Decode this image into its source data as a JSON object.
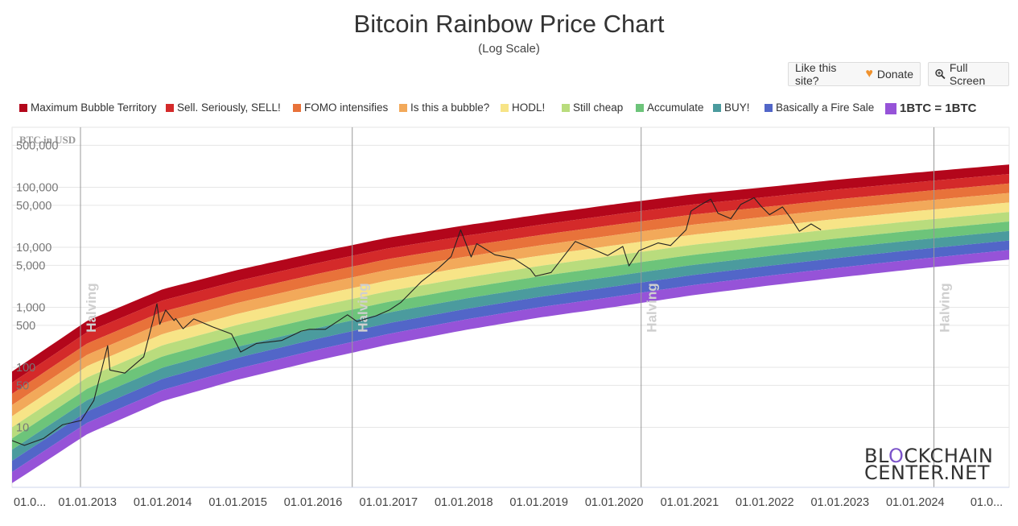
{
  "header": {
    "title": "Bitcoin Rainbow Price Chart",
    "subtitle": "(Log Scale)"
  },
  "toolbar": {
    "donate_label": "Like this site?",
    "donate_link": "Donate",
    "fullscreen_label": "Full Screen"
  },
  "legend": [
    {
      "label": "Maximum Bubble Territory",
      "color": "#b3061b"
    },
    {
      "label": "Sell. Seriously, SELL!",
      "color": "#d42a2a"
    },
    {
      "label": "FOMO intensifies",
      "color": "#e8723a"
    },
    {
      "label": "Is this a bubble?",
      "color": "#f2a95a"
    },
    {
      "label": "HODL!",
      "color": "#f7e487"
    },
    {
      "label": "Still cheap",
      "color": "#b9dc7d"
    },
    {
      "label": "Accumulate",
      "color": "#6dc47a"
    },
    {
      "label": "BUY!",
      "color": "#4b9b9e"
    },
    {
      "label": "Basically a Fire Sale",
      "color": "#5266c8"
    },
    {
      "label": "1BTC = 1BTC",
      "color": "#9653d8"
    }
  ],
  "logo": {
    "part1": "BL",
    "o": "O",
    "part2": "CKCHAIN",
    "line2": "CENTER.NET"
  },
  "chart_data": {
    "type": "area",
    "title": "Bitcoin Rainbow Price Chart",
    "subtitle": "(Log Scale)",
    "ylabel": "BTC in USD",
    "yscale": "log",
    "ylim": [
      1,
      1000000
    ],
    "y_ticks": [
      10,
      50,
      100,
      500,
      1000,
      5000,
      10000,
      50000,
      100000,
      500000
    ],
    "y_tick_labels": [
      "10",
      "50",
      "100",
      "500",
      "1,000",
      "5,000",
      "10,000",
      "50,000",
      "100,000",
      "500,000"
    ],
    "xlim": [
      "2012-01-01",
      "2025-04-01"
    ],
    "x_ticks": [
      "2012-01-01",
      "2013-01-01",
      "2014-01-01",
      "2015-01-01",
      "2016-01-01",
      "2017-01-01",
      "2018-01-01",
      "2019-01-01",
      "2020-01-01",
      "2021-01-01",
      "2022-01-01",
      "2023-01-01",
      "2024-01-01",
      "2025-01-01"
    ],
    "x_tick_labels": [
      "01.0...",
      "01.01.2013",
      "01.01.2014",
      "01.01.2015",
      "01.01.2016",
      "01.01.2017",
      "01.01.2018",
      "01.01.2019",
      "01.01.2020",
      "01.01.2021",
      "01.01.2022",
      "01.01.2023",
      "01.01.2024",
      "01.0..."
    ],
    "halvings": [
      {
        "date": "2012-11-28",
        "label": "Halving"
      },
      {
        "date": "2016-07-09",
        "label": "Halving"
      },
      {
        "date": "2020-05-11",
        "label": "Halving"
      },
      {
        "date": "2024-04-01",
        "label": "Halving"
      }
    ],
    "rainbow_bands": {
      "x": [
        "2012-01-01",
        "2013-01-01",
        "2014-01-01",
        "2015-01-01",
        "2016-01-01",
        "2017-01-01",
        "2018-01-01",
        "2019-01-01",
        "2020-01-01",
        "2021-01-01",
        "2022-01-01",
        "2023-01-01",
        "2024-01-01",
        "2025-04-01"
      ],
      "upper_edge": [
        85,
        600,
        2000,
        4200,
        8000,
        14500,
        23000,
        35000,
        52000,
        75000,
        100000,
        135000,
        175000,
        240000
      ],
      "lower_edge": [
        1.8,
        12,
        42,
        95,
        190,
        360,
        620,
        1000,
        1500,
        2300,
        3300,
        4600,
        6300,
        9000
      ],
      "band_count": 9
    },
    "series": [
      {
        "name": "BTC price",
        "color": "#222222",
        "x": [
          "2012-01-01",
          "2012-03-01",
          "2012-06-01",
          "2012-09-01",
          "2012-12-01",
          "2013-02-01",
          "2013-04-09",
          "2013-04-20",
          "2013-07-01",
          "2013-10-01",
          "2013-11-15",
          "2013-12-04",
          "2013-12-18",
          "2014-01-15",
          "2014-02-25",
          "2014-03-05",
          "2014-04-10",
          "2014-06-01",
          "2014-09-01",
          "2014-12-01",
          "2015-01-14",
          "2015-04-01",
          "2015-08-01",
          "2015-11-04",
          "2015-12-15",
          "2016-03-01",
          "2016-06-16",
          "2016-08-01",
          "2016-11-01",
          "2017-01-05",
          "2017-03-01",
          "2017-06-10",
          "2017-09-01",
          "2017-11-01",
          "2017-12-17",
          "2018-02-06",
          "2018-03-05",
          "2018-06-01",
          "2018-09-01",
          "2018-11-20",
          "2018-12-15",
          "2019-03-01",
          "2019-06-26",
          "2019-09-01",
          "2019-12-01",
          "2020-02-12",
          "2020-03-13",
          "2020-05-01",
          "2020-08-01",
          "2020-10-01",
          "2020-12-15",
          "2021-01-08",
          "2021-02-20",
          "2021-04-14",
          "2021-05-19",
          "2021-07-20",
          "2021-09-07",
          "2021-11-10",
          "2021-12-15",
          "2022-01-24",
          "2022-03-28",
          "2022-05-12",
          "2022-06-18",
          "2022-08-14",
          "2022-10-01"
        ],
        "values": [
          6,
          5,
          6.5,
          11,
          13,
          28,
          230,
          90,
          80,
          150,
          600,
          1150,
          520,
          900,
          600,
          650,
          440,
          640,
          470,
          360,
          180,
          250,
          280,
          400,
          430,
          430,
          750,
          580,
          720,
          900,
          1200,
          2700,
          4500,
          7000,
          19500,
          6900,
          11500,
          7500,
          6500,
          4300,
          3300,
          3800,
          12500,
          10000,
          7300,
          10300,
          4900,
          8800,
          11800,
          10700,
          19500,
          40000,
          50000,
          63500,
          37000,
          30000,
          52000,
          67000,
          48000,
          35000,
          47000,
          29000,
          18500,
          24500,
          19500
        ]
      }
    ]
  }
}
